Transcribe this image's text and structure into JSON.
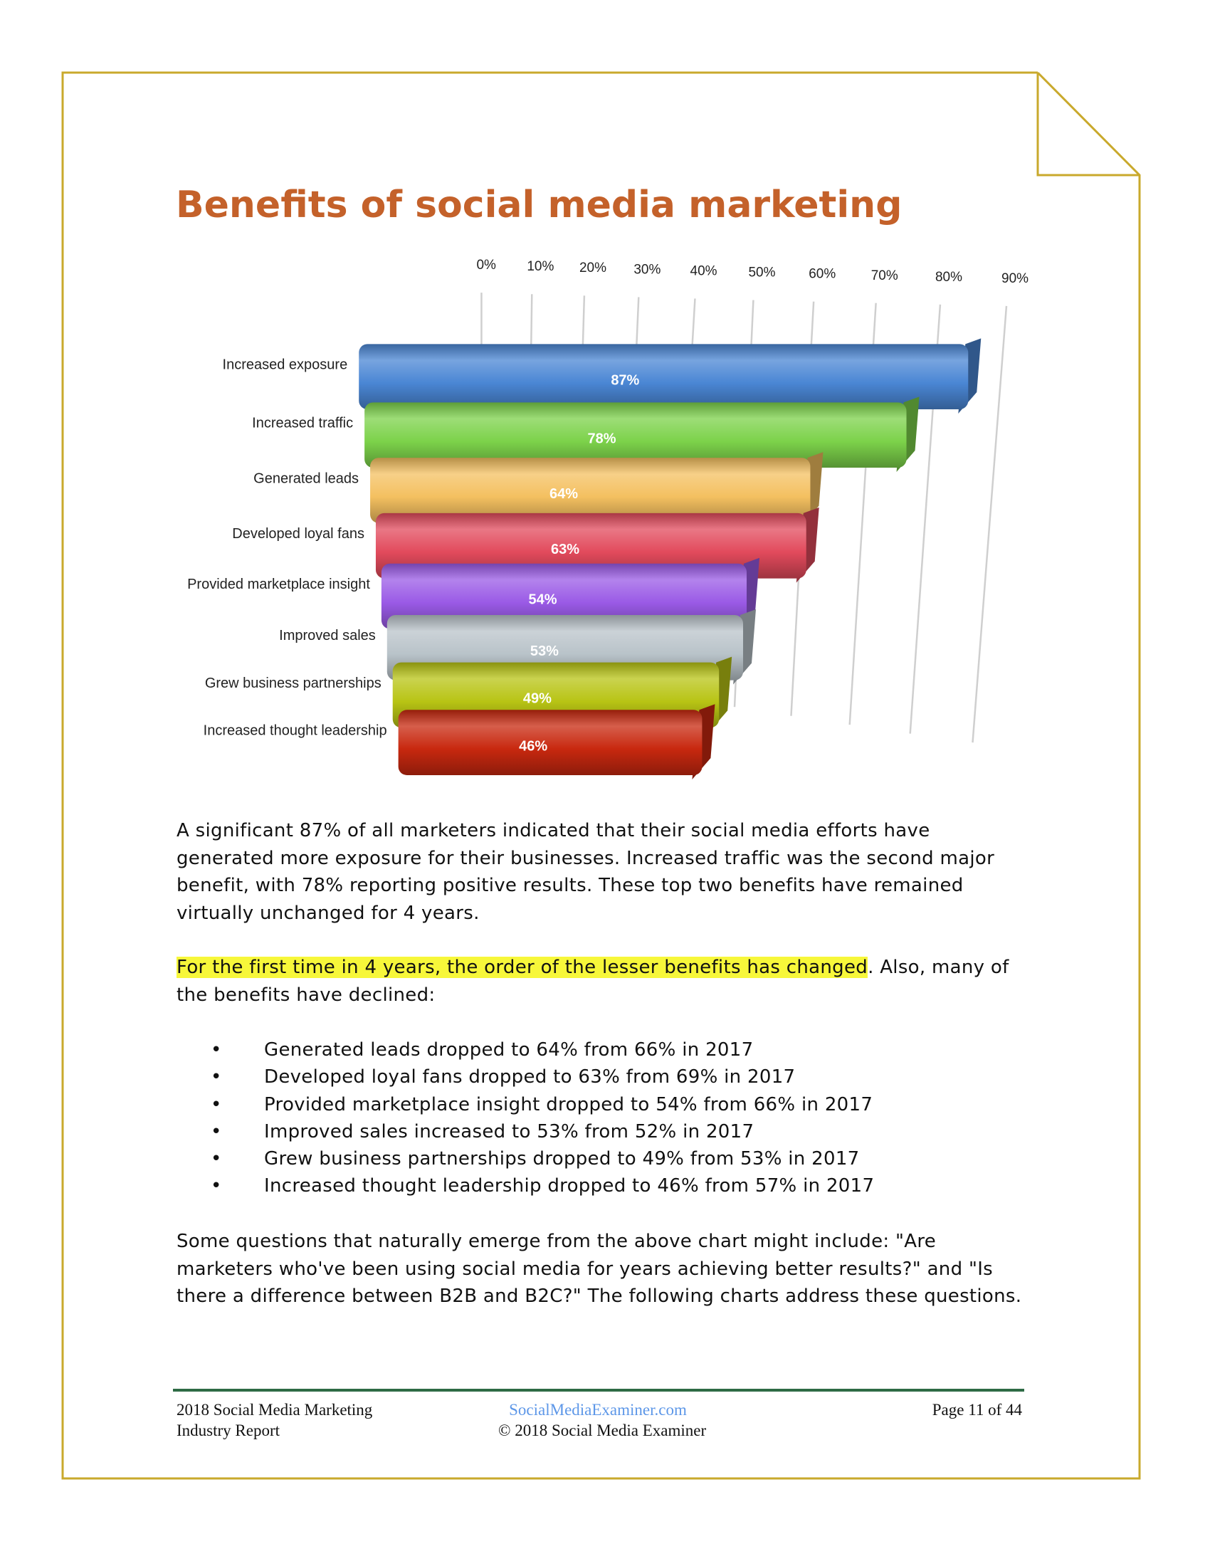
{
  "page": {
    "border_color": "#c9a92c",
    "title_color": "#c4612a",
    "highlight_color": "#f7f73a",
    "rule_color": "#2e6b45"
  },
  "title": "Benefits of social media marketing",
  "chart_data": {
    "type": "bar",
    "orientation": "horizontal",
    "style": "3d",
    "title": "",
    "xlim": [
      0,
      90
    ],
    "ticks": [
      "0%",
      "10%",
      "20%",
      "30%",
      "40%",
      "50%",
      "60%",
      "70%",
      "80%",
      "90%"
    ],
    "grid": true,
    "categories": [
      "Increased exposure",
      "Increased traffic",
      "Generated leads",
      "Developed loyal fans",
      "Provided marketplace insight",
      "Improved sales",
      "Grew business partnerships",
      "Increased thought leadership"
    ],
    "values": [
      87,
      78,
      64,
      63,
      54,
      53,
      49,
      46
    ],
    "value_labels": [
      "87%",
      "78%",
      "64%",
      "63%",
      "54%",
      "53%",
      "49%",
      "46%"
    ],
    "colors": [
      "#4a86d4",
      "#7cd24a",
      "#f4c060",
      "#e24a5c",
      "#9a5ae6",
      "#b9c3c9",
      "#b8c414",
      "#c8280f"
    ]
  },
  "paragraphs": {
    "p1": [
      "A significant 87% of all marketers indicated that their social media efforts have",
      "generated more exposure for their businesses. Increased traffic was the second major",
      "benefit, with 78% reporting positive results. These top two benefits have remained",
      "virtually unchanged for 4 years."
    ],
    "p2_highlight": "For the first time in 4 years, the order of the lesser benefits has changed",
    "p2_rest": ". Also, many of",
    "p2_line2": "the benefits have declined:",
    "bullet_char": "•",
    "bullets": [
      "Generated leads dropped to 64% from 66% in 2017",
      "Developed loyal fans dropped to 63% from 69% in 2017",
      "Provided marketplace insight dropped to 54% from 66% in 2017",
      "Improved sales increased to 53% from 52% in 2017",
      "Grew business partnerships dropped to 49% from 53% in 2017",
      "Increased thought leadership dropped to 46% from 57% in 2017"
    ],
    "p3": [
      "Some questions that naturally emerge from the above chart might include: \"Are",
      "marketers who've been using social media for years achieving better results?\" and \"Is",
      "there a difference between B2B and B2C?\" The following charts address these questions."
    ]
  },
  "footer": {
    "left_line1": "2018 Social Media Marketing",
    "left_line2": "Industry Report",
    "link": "SocialMediaExaminer.com",
    "copyright": "© 2018 Social Media Examiner",
    "page": "Page 11 of 44"
  }
}
